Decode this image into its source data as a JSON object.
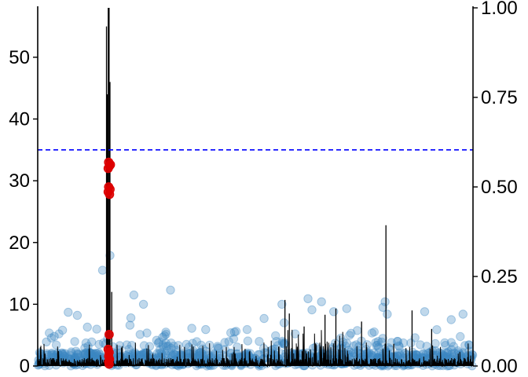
{
  "chart_data": {
    "type": "scatter",
    "title": "",
    "xlabel": "",
    "ylabel": "",
    "x_range": [
      0,
      1000
    ],
    "y_left_range": [
      0,
      58
    ],
    "y_right_range": [
      0,
      1
    ],
    "y_left_ticks": [
      0,
      10,
      20,
      30,
      40,
      50
    ],
    "y_left_tick_labels": [
      "0",
      "10",
      "20",
      "30",
      "40",
      "50"
    ],
    "y_right_ticks": [
      0,
      0.25,
      0.5,
      0.75,
      1
    ],
    "y_right_tick_labels": [
      "0.00",
      "0.25",
      "0.50",
      "0.75",
      "1.00"
    ],
    "threshold": 35,
    "grid": false,
    "legend": "none",
    "colors": {
      "points": "#3a87c2",
      "highlight": "#dd0000",
      "threshold": "#0000ff",
      "line": "#000000"
    },
    "highlighted_points": [
      {
        "x": 163,
        "y": 33
      },
      {
        "x": 165,
        "y": 32.4
      },
      {
        "x": 162,
        "y": 32
      },
      {
        "x": 167,
        "y": 32.6
      },
      {
        "x": 163,
        "y": 29
      },
      {
        "x": 166,
        "y": 28.6
      },
      {
        "x": 162,
        "y": 28.2
      },
      {
        "x": 165,
        "y": 27.8
      },
      {
        "x": 164,
        "y": 5.1
      },
      {
        "x": 162,
        "y": 2.7
      },
      {
        "x": 164,
        "y": 2.2
      },
      {
        "x": 163,
        "y": 1.6
      },
      {
        "x": 165,
        "y": 1.1
      },
      {
        "x": 163,
        "y": 0.7
      },
      {
        "x": 164,
        "y": 0.3
      }
    ],
    "notable_points": [
      {
        "x": 149,
        "y": 15.5
      },
      {
        "x": 166,
        "y": 17.9
      },
      {
        "x": 221,
        "y": 11.5
      },
      {
        "x": 243,
        "y": 10
      },
      {
        "x": 305,
        "y": 12.3
      },
      {
        "x": 520,
        "y": 7.7
      },
      {
        "x": 561,
        "y": 10
      },
      {
        "x": 566,
        "y": 7
      },
      {
        "x": 621,
        "y": 10.9
      },
      {
        "x": 630,
        "y": 9.1
      },
      {
        "x": 652,
        "y": 10.4
      },
      {
        "x": 680,
        "y": 8.8
      },
      {
        "x": 710,
        "y": 9.3
      },
      {
        "x": 793,
        "y": 9.5
      },
      {
        "x": 798,
        "y": 10.4
      },
      {
        "x": 803,
        "y": 8.4
      },
      {
        "x": 889,
        "y": 8.8
      },
      {
        "x": 950,
        "y": 7.5
      },
      {
        "x": 977,
        "y": 8.4
      },
      {
        "x": 20,
        "y": 3.9
      },
      {
        "x": 38,
        "y": 4.8
      },
      {
        "x": 57,
        "y": 5.8
      },
      {
        "x": 70,
        "y": 8.7
      },
      {
        "x": 91,
        "y": 8.2
      },
      {
        "x": 114,
        "y": 6.3
      },
      {
        "x": 212,
        "y": 6.6
      },
      {
        "x": 214,
        "y": 7.8
      },
      {
        "x": 354,
        "y": 6.1
      },
      {
        "x": 386,
        "y": 5.9
      },
      {
        "x": 452,
        "y": 5.5
      }
    ],
    "black_line_peaks": [
      {
        "x": 158,
        "y": 55
      },
      {
        "x": 162,
        "y": 58
      },
      {
        "x": 164,
        "y": 58
      },
      {
        "x": 166,
        "y": 46
      },
      {
        "x": 160,
        "y": 44
      },
      {
        "x": 170,
        "y": 12
      },
      {
        "x": 568,
        "y": 10.7
      },
      {
        "x": 578,
        "y": 8.5
      },
      {
        "x": 612,
        "y": 6.4
      },
      {
        "x": 660,
        "y": 8.3
      },
      {
        "x": 685,
        "y": 9.3
      },
      {
        "x": 744,
        "y": 7.2
      },
      {
        "x": 800,
        "y": 22.8
      },
      {
        "x": 818,
        "y": 3.6
      },
      {
        "x": 860,
        "y": 9
      },
      {
        "x": 905,
        "y": 6
      }
    ]
  }
}
